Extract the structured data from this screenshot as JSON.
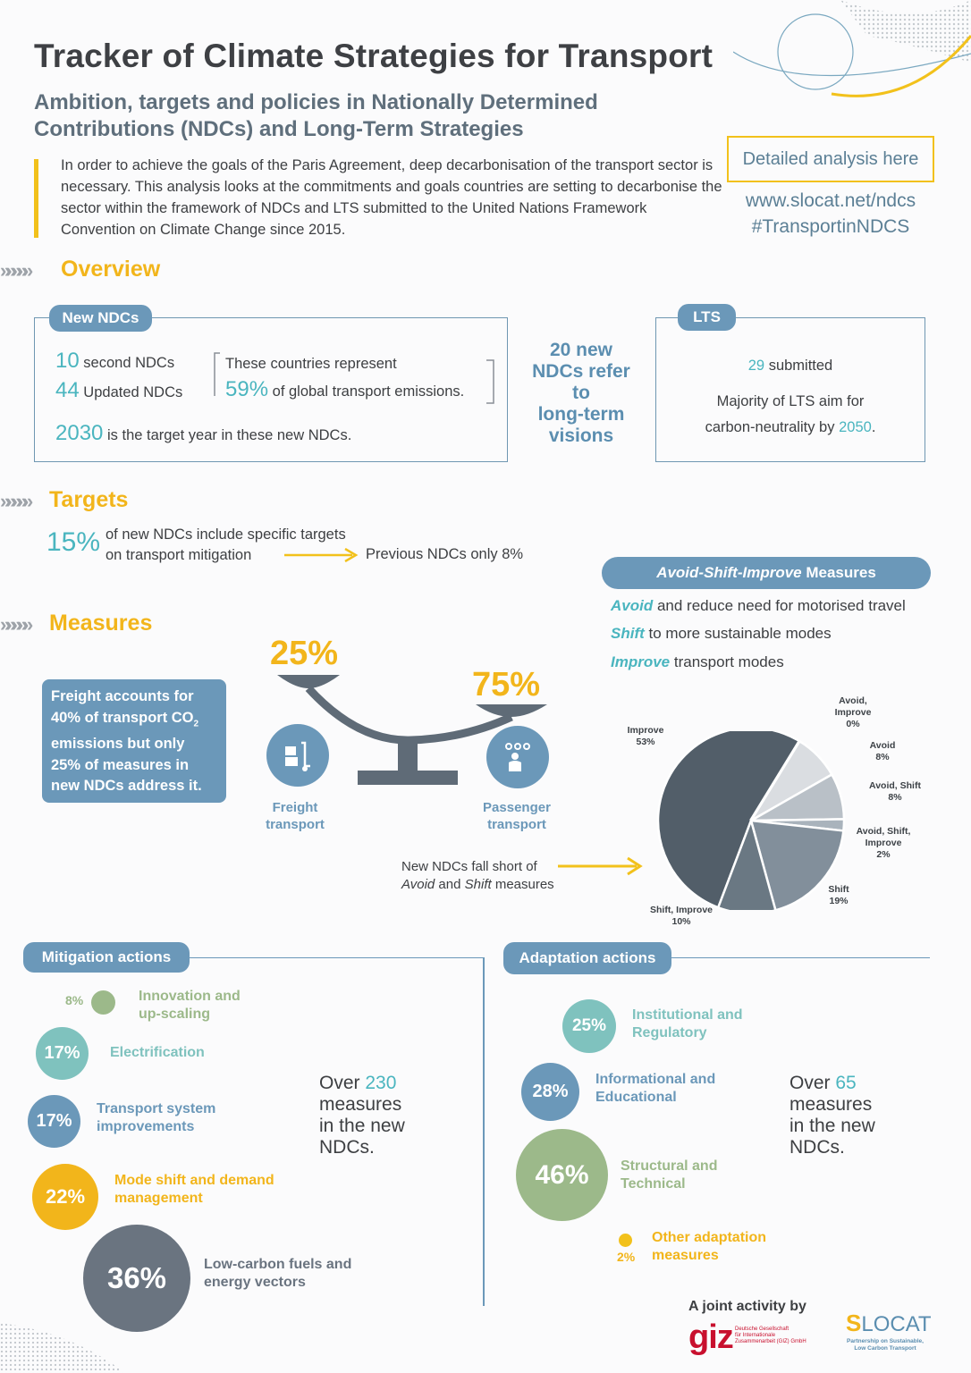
{
  "header": {
    "title": "Tracker of Climate Strategies for Transport",
    "subtitle": "Ambition, targets and policies in Nationally Determined Contributions (NDCs) and Long-Term Strategies",
    "intro": "In order to achieve the goals of the Paris Agreement, deep decarbonisation of the transport sector is necessary.  This analysis looks at the commitments and goals countries are setting to decarbonise the sector within the framework of NDCs and LTS submitted to the United Nations Framework Convention on Climate Change since 2015.",
    "cta": "Detailed analysis here",
    "url": "www.slocat.net/ndcs",
    "hashtag": "#TransportinNDCS"
  },
  "overview": {
    "heading": "Overview",
    "new_ndcs": {
      "label": "New NDCs",
      "second_num": "10",
      "second_text": "second NDCs",
      "updated_num": "44",
      "updated_text": "Updated NDCs",
      "represent_text": "These countries represent",
      "share_num": "59%",
      "share_text": "of global transport emissions.",
      "year_num": "2030",
      "year_text": "is the target year in these new NDCs."
    },
    "middle": [
      "20 new",
      "NDCs refer",
      "to",
      "long-term",
      "visions"
    ],
    "lts": {
      "label": "LTS",
      "submitted_num": "29",
      "submitted_text": "submitted",
      "majority_text_1": "Majority of LTS aim for",
      "majority_text_2": "carbon-neutrality by",
      "majority_year": "2050",
      "majority_end": "."
    }
  },
  "targets": {
    "heading": "Targets",
    "percent": "15%",
    "text_1": "of new NDCs include specific targets",
    "text_2": "on transport mitigation",
    "previous": "Previous NDCs only 8%"
  },
  "measures": {
    "heading": "Measures",
    "freight_box": [
      "Freight accounts for",
      "40% of transport CO",
      "2",
      "emissions but only",
      "25% of measures in",
      "new NDCs address it."
    ],
    "freight_pct": "25%",
    "passenger_pct": "75%",
    "freight_label": [
      "Freight",
      "transport"
    ],
    "passenger_label": [
      "Passenger",
      "transport"
    ],
    "shortfall": [
      "New NDCs fall short of",
      "Avoid",
      " and ",
      "Shift",
      " measures"
    ]
  },
  "asi": {
    "pill_italic": "Avoid-Shift-Improve",
    "pill_rest": " Measures",
    "avoid_kw": "Avoid",
    "avoid_text": " and reduce need for motorised travel",
    "shift_kw": "Shift",
    "shift_text": " to more sustainable modes",
    "improve_kw": "Improve",
    "improve_text": " transport modes"
  },
  "chart_data": {
    "type": "pie",
    "categories": [
      "Improve",
      "Avoid, Improve",
      "Avoid",
      "Avoid, Shift",
      "Avoid, Shift, Improve",
      "Shift",
      "Shift, Improve"
    ],
    "values": [
      53,
      0,
      8,
      8,
      2,
      19,
      10
    ],
    "labels": [
      "53%",
      "0%",
      "8%",
      "8%",
      "2%",
      "19%",
      "10%"
    ],
    "colors": [
      "#525e69",
      "#ffffff",
      "#dadde1",
      "#b9c0c7",
      "#a9b3bc",
      "#828f9b",
      "#6a7883"
    ]
  },
  "mitigation": {
    "label": "Mitigation actions",
    "items": [
      {
        "pct": "8%",
        "label_1": "Innovation and",
        "label_2": "up-scaling",
        "color": "#9cb98a"
      },
      {
        "pct": "17%",
        "label_1": "Electrification",
        "label_2": "",
        "color": "#7fc2be"
      },
      {
        "pct": "17%",
        "label_1": "Transport system",
        "label_2": "improvements",
        "color": "#6b98b9"
      },
      {
        "pct": "22%",
        "label_1": "Mode shift and demand",
        "label_2": "management",
        "color": "#f2b51b"
      },
      {
        "pct": "36%",
        "label_1": "Low-carbon fuels and",
        "label_2": "energy vectors",
        "color": "#6a7480"
      }
    ],
    "total_pre": "Over ",
    "total_num": "230",
    "total_lines": [
      "measures",
      "in the new",
      "NDCs."
    ]
  },
  "adaptation": {
    "label": "Adaptation actions",
    "items": [
      {
        "pct": "25%",
        "label_1": "Institutional and",
        "label_2": "Regulatory",
        "color": "#7fc2be"
      },
      {
        "pct": "28%",
        "label_1": "Informational and",
        "label_2": "Educational",
        "color": "#6b98b9"
      },
      {
        "pct": "46%",
        "label_1": "Structural and",
        "label_2": "Technical",
        "color": "#9cb98a"
      },
      {
        "pct": "2%",
        "label_1": "Other adaptation",
        "label_2": "measures",
        "color": "#f2c11b"
      }
    ],
    "total_pre": "Over ",
    "total_num": "65",
    "total_lines": [
      "measures",
      "in the new",
      "NDCs."
    ]
  },
  "footer": {
    "joint": "A joint activity by",
    "giz": "giz",
    "giz_small": [
      "Deutsche Gesellschaft",
      "für Internationale",
      "Zusammenarbeit (GIZ) GmbH"
    ],
    "slocat_s": "S",
    "slocat_rest": "LOCAT",
    "slocat_small": [
      "Partnership on Sustainable,",
      "Low Carbon Transport"
    ]
  }
}
